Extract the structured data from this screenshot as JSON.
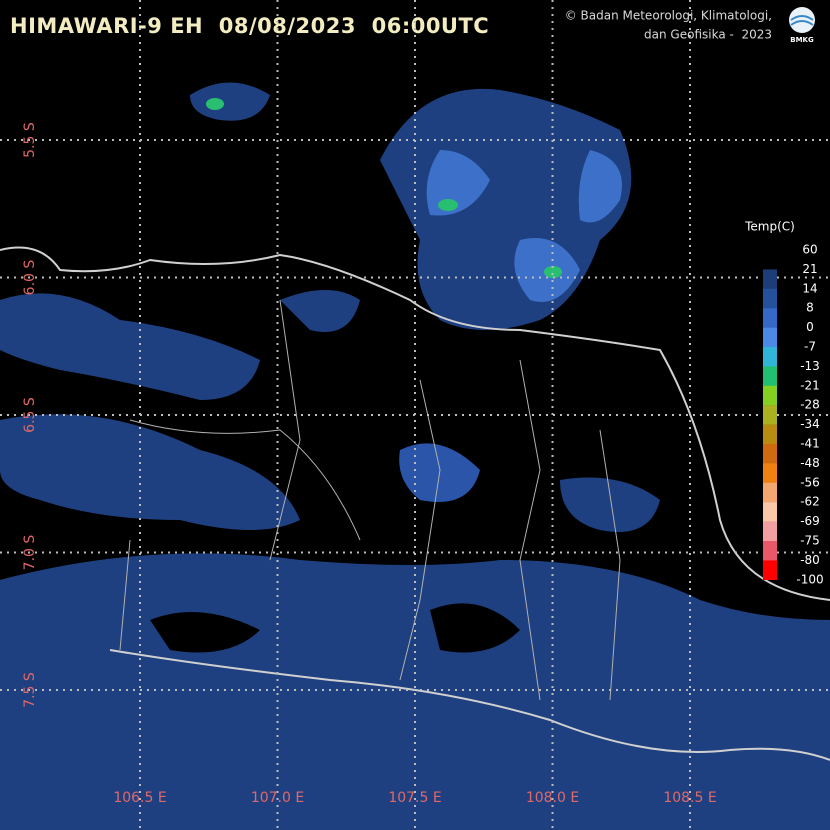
{
  "header": {
    "title": "HIMAWARI-9 EH  08/08/2023  06:00UTC",
    "credit": [
      "© Badan Meteorologi, Klimatologi,",
      "dan Geofisika -  2023"
    ],
    "logo": "BMKG"
  },
  "map": {
    "longitude_labels": [
      "106.5 E",
      "107.0 E",
      "107.5 E",
      "108.0 E",
      "108.5 E"
    ],
    "latitude_labels": [
      "5.5 S",
      "6.0 S",
      "6.5 S",
      "7.0 S",
      "7.5 S"
    ]
  },
  "legend": {
    "title": "Temp(C)",
    "labels": [
      60,
      21,
      14,
      8,
      0,
      -7,
      -13,
      -21,
      -28,
      -34,
      -41,
      -48,
      -56,
      -62,
      -69,
      -75,
      -80,
      -100
    ],
    "colors": [
      "#1c3d78",
      "#24509c",
      "#3668c8",
      "#4a8ae6",
      "#30b4d8",
      "#20c070",
      "#84d020",
      "#aab020",
      "#b88c10",
      "#d06a10",
      "#f08010",
      "#f4a870",
      "#f8c8a8",
      "#f0a0a0",
      "#e85868",
      "#ff0000"
    ]
  }
}
